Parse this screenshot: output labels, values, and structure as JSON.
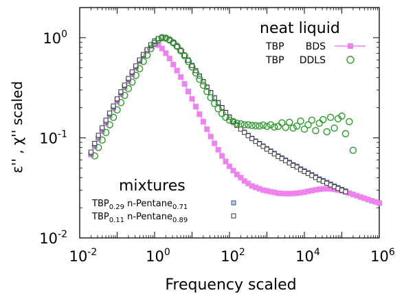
{
  "chart_data": {
    "type": "scatter",
    "xlabel": "Frequency scaled",
    "ylabel": "ε'' , χ'' scaled",
    "x_scale": "log",
    "y_scale": "log",
    "xlim": [
      0.01,
      1000000
    ],
    "ylim": [
      0.01,
      2.0
    ],
    "x_ticks": [
      {
        "base": "10",
        "exp": "-2",
        "value": 0.01
      },
      {
        "base": "10",
        "exp": "0",
        "value": 1
      },
      {
        "base": "10",
        "exp": "2",
        "value": 100
      },
      {
        "base": "10",
        "exp": "4",
        "value": 10000
      },
      {
        "base": "10",
        "exp": "6",
        "value": 1000000
      }
    ],
    "y_ticks": [
      {
        "base": "10",
        "exp": "-2",
        "value": 0.01
      },
      {
        "base": "10",
        "exp": "-1",
        "value": 0.1
      },
      {
        "base": "10",
        "exp": "0",
        "value": 1
      }
    ],
    "legend_top": {
      "title": "neat liquid",
      "entries": [
        {
          "sample": "TBP",
          "method": "BDS",
          "series": "tbp_bds"
        },
        {
          "sample": "TBP",
          "method": "DDLS",
          "series": "tbp_ddls"
        }
      ]
    },
    "legend_bottom": {
      "title": "mixtures",
      "entries": [
        {
          "p1": "TBP",
          "s1": "0.29",
          "p2": " n-Pentane",
          "s2": "0.71",
          "series": "mix029"
        },
        {
          "p1": "TBP",
          "s1": "0.11",
          "p2": " n-Pentane",
          "s2": "0.89",
          "series": "mix011"
        }
      ]
    },
    "series": [
      {
        "key": "tbp_bds",
        "marker": "filled-square-line",
        "color": "#ee82ee",
        "x": [
          0.02,
          0.0251,
          0.0316,
          0.0398,
          0.0501,
          0.0631,
          0.0794,
          0.1,
          0.126,
          0.158,
          0.2,
          0.251,
          0.316,
          0.398,
          0.501,
          0.631,
          0.794,
          1.0,
          1.26,
          1.58,
          2.0,
          2.51,
          3.16,
          3.98,
          5.01,
          6.31,
          7.94,
          10,
          12.6,
          15.8,
          20,
          25.1,
          31.6,
          39.8,
          50.1,
          63.1,
          79.4,
          100,
          126,
          158,
          200,
          251,
          316,
          398,
          501,
          631,
          794,
          1000,
          1260,
          1580,
          2000,
          2510,
          3160,
          3980,
          5010,
          6310,
          7940,
          10000,
          12600,
          15800,
          20000,
          25100,
          31600,
          39800,
          50100,
          63100,
          79400,
          100000,
          126000,
          158000,
          200000,
          251000,
          316000,
          398000,
          501000,
          631000,
          794000,
          1000000
        ],
        "y": [
          0.068,
          0.082,
          0.098,
          0.117,
          0.14,
          0.166,
          0.197,
          0.232,
          0.272,
          0.318,
          0.37,
          0.43,
          0.5,
          0.578,
          0.658,
          0.74,
          0.82,
          0.88,
          0.845,
          0.78,
          0.7,
          0.62,
          0.54,
          0.47,
          0.405,
          0.345,
          0.29,
          0.245,
          0.205,
          0.172,
          0.145,
          0.122,
          0.103,
          0.088,
          0.076,
          0.066,
          0.058,
          0.052,
          0.047,
          0.043,
          0.04,
          0.037,
          0.035,
          0.033,
          0.032,
          0.031,
          0.03,
          0.0295,
          0.029,
          0.0285,
          0.028,
          0.0278,
          0.0277,
          0.0277,
          0.0278,
          0.028,
          0.0283,
          0.0287,
          0.0292,
          0.0297,
          0.0302,
          0.0306,
          0.0309,
          0.031,
          0.0309,
          0.0306,
          0.0301,
          0.0295,
          0.0288,
          0.028,
          0.0272,
          0.0264,
          0.0256,
          0.0249,
          0.0242,
          0.0235,
          0.0229,
          0.0223
        ]
      },
      {
        "key": "tbp_ddls",
        "marker": "open-circle",
        "color": "#2a9a2a",
        "x": [
          0.0251,
          0.0316,
          0.0398,
          0.0501,
          0.0631,
          0.0794,
          0.1,
          0.126,
          0.158,
          0.2,
          0.251,
          0.316,
          0.398,
          0.501,
          0.631,
          0.794,
          1.0,
          1.26,
          1.58,
          2.0,
          2.51,
          3.16,
          3.98,
          5.01,
          6.31,
          7.94,
          10,
          12.6,
          15.8,
          20,
          25.1,
          31.6,
          39.8,
          50.1,
          63.1,
          79.4,
          100,
          126,
          158,
          200,
          251,
          316,
          398,
          501,
          631,
          794,
          1000,
          1260,
          1580,
          2000,
          2510,
          3160,
          3980,
          5010,
          6310,
          7940,
          10000,
          12600,
          15800,
          20000,
          25100,
          31600,
          39800,
          50100,
          63100,
          79400,
          100000,
          126000,
          158000,
          200000
        ],
        "y": [
          0.066,
          0.08,
          0.095,
          0.113,
          0.135,
          0.16,
          0.19,
          0.225,
          0.265,
          0.31,
          0.36,
          0.42,
          0.49,
          0.58,
          0.67,
          0.78,
          0.88,
          0.96,
          1.0,
          0.99,
          0.95,
          0.89,
          0.82,
          0.74,
          0.66,
          0.58,
          0.51,
          0.445,
          0.385,
          0.335,
          0.29,
          0.252,
          0.22,
          0.195,
          0.175,
          0.16,
          0.15,
          0.145,
          0.14,
          0.138,
          0.135,
          0.135,
          0.133,
          0.132,
          0.131,
          0.134,
          0.13,
          0.135,
          0.128,
          0.13,
          0.141,
          0.127,
          0.143,
          0.125,
          0.131,
          0.147,
          0.122,
          0.135,
          0.15,
          0.118,
          0.14,
          0.152,
          0.115,
          0.16,
          0.125,
          0.155,
          0.165,
          0.11,
          0.145,
          0.075
        ]
      },
      {
        "key": "mix029",
        "marker": "open-square-blue",
        "color": "#3b5aa0",
        "x": [
          0.02,
          0.0251,
          0.0316,
          0.0398,
          0.0501,
          0.0631,
          0.0794,
          0.1,
          0.126,
          0.158,
          0.2,
          0.251,
          0.316,
          0.398,
          0.501,
          0.631,
          0.794,
          1.0,
          1.26,
          1.58,
          2.0,
          2.51,
          3.16,
          3.98,
          5.01,
          6.31,
          7.94,
          10,
          12.6,
          15.8,
          20,
          25.1,
          31.6,
          39.8,
          50.1,
          63.1,
          79.4,
          100,
          126,
          158,
          200,
          251,
          316,
          398,
          501,
          631,
          794,
          1000,
          1260,
          1580,
          2000,
          2510,
          3160,
          3980,
          5010,
          6310,
          7940,
          10000,
          12600,
          15800,
          20000,
          25100,
          31600,
          39800,
          50100,
          63100,
          79400,
          100000,
          126000
        ],
        "y": [
          0.07,
          0.085,
          0.102,
          0.122,
          0.145,
          0.172,
          0.203,
          0.24,
          0.282,
          0.33,
          0.385,
          0.447,
          0.515,
          0.59,
          0.67,
          0.75,
          0.84,
          0.92,
          0.975,
          1.0,
          0.99,
          0.95,
          0.89,
          0.82,
          0.745,
          0.67,
          0.6,
          0.53,
          0.47,
          0.415,
          0.365,
          0.322,
          0.284,
          0.252,
          0.225,
          0.201,
          0.18,
          0.162,
          0.147,
          0.134,
          0.123,
          0.114,
          0.106,
          0.099,
          0.093,
          0.088,
          0.083,
          0.078,
          0.074,
          0.07,
          0.066,
          0.063,
          0.06,
          0.057,
          0.054,
          0.052,
          0.049,
          0.047,
          0.045,
          0.043,
          0.041,
          0.039,
          0.0375,
          0.036,
          0.0345,
          0.033,
          0.0318,
          0.0306,
          0.0295
        ]
      },
      {
        "key": "mix011",
        "marker": "open-square-black",
        "color": "#333333",
        "x": [
          0.02,
          0.0251,
          0.0316,
          0.0398,
          0.0501,
          0.0631,
          0.0794,
          0.1,
          0.126,
          0.158,
          0.2,
          0.251,
          0.316,
          0.398,
          0.501,
          0.631,
          0.794,
          1.0,
          1.26,
          1.58,
          2.0,
          2.51,
          3.16,
          3.98,
          5.01,
          6.31,
          7.94,
          10,
          12.6,
          15.8,
          20,
          25.1,
          31.6,
          39.8,
          50.1,
          63.1,
          79.4,
          100,
          126,
          158,
          200,
          251,
          316,
          398,
          501,
          631,
          794,
          1000,
          1260,
          1580,
          2000,
          2510,
          3160,
          3980,
          5010,
          6310,
          7940,
          10000,
          12600,
          15800,
          20000,
          25100,
          31600,
          39800,
          50100,
          63100,
          79400,
          100000,
          126000
        ],
        "y": [
          0.072,
          0.088,
          0.106,
          0.126,
          0.15,
          0.177,
          0.208,
          0.245,
          0.288,
          0.336,
          0.392,
          0.455,
          0.523,
          0.6,
          0.68,
          0.76,
          0.85,
          0.93,
          0.98,
          1.0,
          0.985,
          0.945,
          0.885,
          0.815,
          0.74,
          0.665,
          0.595,
          0.527,
          0.468,
          0.413,
          0.363,
          0.32,
          0.283,
          0.251,
          0.224,
          0.2,
          0.179,
          0.161,
          0.146,
          0.133,
          0.122,
          0.113,
          0.105,
          0.098,
          0.092,
          0.087,
          0.082,
          0.077,
          0.073,
          0.069,
          0.065,
          0.062,
          0.059,
          0.056,
          0.053,
          0.051,
          0.048,
          0.046,
          0.044,
          0.042,
          0.04,
          0.038,
          0.0367,
          0.0352,
          0.0338,
          0.0324,
          0.0312,
          0.03,
          0.0289
        ]
      }
    ]
  }
}
